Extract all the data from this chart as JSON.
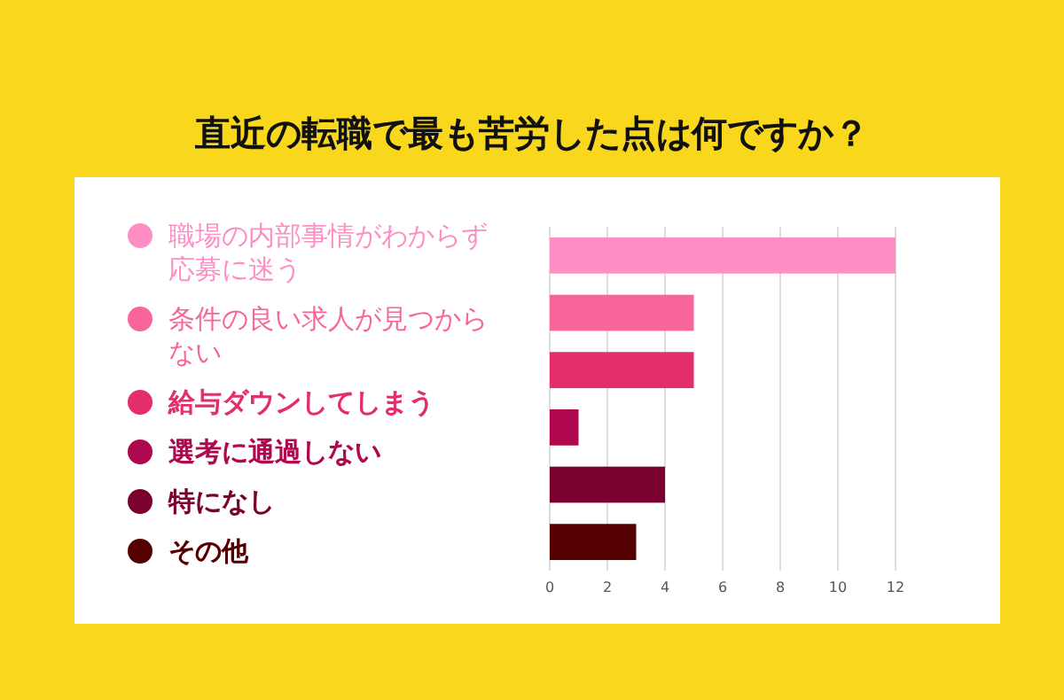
{
  "chart_data": {
    "type": "bar",
    "orientation": "horizontal",
    "title": "直近の転職で最も苦労した点は何ですか？",
    "categories": [
      "職場の内部事情がわからず応募に迷う",
      "条件の良い求人が見つからない",
      "給与ダウンしてしまう",
      "選考に通過しない",
      "特になし",
      "その他"
    ],
    "values": [
      12,
      5,
      5,
      1,
      4,
      3
    ],
    "colors": [
      "#fd8fc4",
      "#f8659b",
      "#e32d6d",
      "#b0084f",
      "#7a0030",
      "#550000"
    ],
    "xlim": [
      0,
      12
    ],
    "xticks": [
      0,
      2,
      4,
      6,
      8,
      10,
      12
    ],
    "grid": "x"
  }
}
